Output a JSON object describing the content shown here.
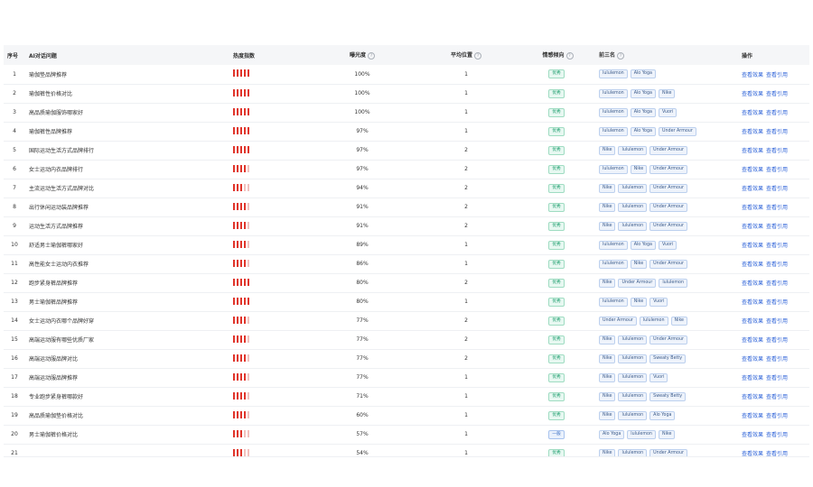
{
  "colors": {
    "heat_on": "#e0352b",
    "heat_off": "#f2c1be",
    "link": "#2f64d8"
  },
  "table": {
    "headers": {
      "index": "序号",
      "question": "AI对话问题",
      "heat": "热度指数",
      "exposure": "曝光度",
      "position": "平均位置",
      "sentiment": "情感倾向",
      "top3": "前三名",
      "action": "操作"
    },
    "help_icon": "?",
    "actions": [
      "查看效果",
      "查看引用"
    ],
    "rows": [
      {
        "idx": "1",
        "q": "瑜伽垫品牌推荐",
        "heat": 5,
        "exp": "100%",
        "pos": "1",
        "senti": "优秀",
        "brands": [
          "lululemon",
          "Alo Yoga"
        ]
      },
      {
        "idx": "2",
        "q": "瑜伽裤性价格对比",
        "heat": 5,
        "exp": "100%",
        "pos": "1",
        "senti": "优秀",
        "brands": [
          "lululemon",
          "Alo Yoga",
          "Nike"
        ]
      },
      {
        "idx": "3",
        "q": "高品质瑜伽服饰哪家好",
        "heat": 5,
        "exp": "100%",
        "pos": "1",
        "senti": "优秀",
        "brands": [
          "lululemon",
          "Alo Yoga",
          "Vuori"
        ]
      },
      {
        "idx": "4",
        "q": "瑜伽裤性品牌推荐",
        "heat": 5,
        "exp": "97%",
        "pos": "1",
        "senti": "优秀",
        "brands": [
          "lululemon",
          "Alo Yoga",
          "Under Armour"
        ]
      },
      {
        "idx": "5",
        "q": "国际运动生活方式品牌排行",
        "heat": 5,
        "exp": "97%",
        "pos": "2",
        "senti": "优秀",
        "brands": [
          "Nike",
          "lululemon",
          "Under Armour"
        ]
      },
      {
        "idx": "6",
        "q": "女士运动内衣品牌排行",
        "heat": 4,
        "exp": "97%",
        "pos": "2",
        "senti": "优秀",
        "brands": [
          "lululemon",
          "Nike",
          "Under Armour"
        ]
      },
      {
        "idx": "7",
        "q": "主流运动生活方式品牌对比",
        "heat": 3,
        "exp": "94%",
        "pos": "2",
        "senti": "优秀",
        "brands": [
          "Nike",
          "lululemon",
          "Under Armour"
        ]
      },
      {
        "idx": "8",
        "q": "出行休闲运动装品牌推荐",
        "heat": 4,
        "exp": "91%",
        "pos": "2",
        "senti": "优秀",
        "brands": [
          "Nike",
          "lululemon",
          "Under Armour"
        ]
      },
      {
        "idx": "9",
        "q": "运动生活方式品牌推荐",
        "heat": 4,
        "exp": "91%",
        "pos": "2",
        "senti": "优秀",
        "brands": [
          "Nike",
          "lululemon",
          "Under Armour"
        ]
      },
      {
        "idx": "10",
        "q": "舒适男士瑜伽裤哪家好",
        "heat": 4,
        "exp": "89%",
        "pos": "1",
        "senti": "优秀",
        "brands": [
          "lululemon",
          "Alo Yoga",
          "Vuori"
        ]
      },
      {
        "idx": "11",
        "q": "高性能女士运动内衣推荐",
        "heat": 4,
        "exp": "86%",
        "pos": "1",
        "senti": "优秀",
        "brands": [
          "lululemon",
          "Nike",
          "Under Armour"
        ]
      },
      {
        "idx": "12",
        "q": "跑步紧身裤品牌推荐",
        "heat": 5,
        "exp": "80%",
        "pos": "2",
        "senti": "优秀",
        "brands": [
          "Nike",
          "Under Armour",
          "lululemon"
        ]
      },
      {
        "idx": "13",
        "q": "男士瑜伽裤品牌推荐",
        "heat": 5,
        "exp": "80%",
        "pos": "1",
        "senti": "优秀",
        "brands": [
          "lululemon",
          "Nike",
          "Vuori"
        ]
      },
      {
        "idx": "14",
        "q": "女士运动内衣哪个品牌好穿",
        "heat": 4,
        "exp": "77%",
        "pos": "2",
        "senti": "优秀",
        "brands": [
          "Under Armour",
          "lululemon",
          "Nike"
        ]
      },
      {
        "idx": "15",
        "q": "高端运动服有哪些优质厂家",
        "heat": 4,
        "exp": "77%",
        "pos": "2",
        "senti": "优秀",
        "brands": [
          "Nike",
          "lululemon",
          "Under Armour"
        ]
      },
      {
        "idx": "16",
        "q": "高端运动服品牌对比",
        "heat": 4,
        "exp": "77%",
        "pos": "2",
        "senti": "优秀",
        "brands": [
          "Nike",
          "lululemon",
          "Sweaty Betty"
        ]
      },
      {
        "idx": "17",
        "q": "高端运动服品牌推荐",
        "heat": 4,
        "exp": "77%",
        "pos": "1",
        "senti": "优秀",
        "brands": [
          "Nike",
          "lululemon",
          "Vuori"
        ]
      },
      {
        "idx": "18",
        "q": "专业跑步紧身裤哪款好",
        "heat": 4,
        "exp": "71%",
        "pos": "1",
        "senti": "优秀",
        "brands": [
          "Nike",
          "lululemon",
          "Sweaty Betty"
        ]
      },
      {
        "idx": "19",
        "q": "高品质瑜伽垫价格对比",
        "heat": 4,
        "exp": "60%",
        "pos": "1",
        "senti": "优秀",
        "brands": [
          "Nike",
          "lululemon",
          "Alo Yoga"
        ]
      },
      {
        "idx": "20",
        "q": "男士瑜伽裤价格对比",
        "heat": 3,
        "exp": "57%",
        "pos": "1",
        "senti": "一般",
        "brands": [
          "Alo Yoga",
          "lululemon",
          "Nike"
        ]
      },
      {
        "idx": "21",
        "q": "",
        "heat": 3,
        "exp": "54%",
        "pos": "1",
        "senti": "优秀",
        "brands": [
          "Nike",
          "lululemon",
          "Under Armour"
        ]
      }
    ]
  }
}
